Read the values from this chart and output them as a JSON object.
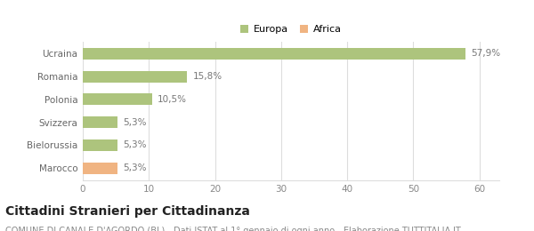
{
  "categories": [
    "Marocco",
    "Bielorussia",
    "Svizzera",
    "Polonia",
    "Romania",
    "Ucraina"
  ],
  "values": [
    5.3,
    5.3,
    5.3,
    10.5,
    15.8,
    57.9
  ],
  "labels": [
    "5,3%",
    "5,3%",
    "5,3%",
    "10,5%",
    "15,8%",
    "57,9%"
  ],
  "colors": [
    "#f0b482",
    "#adc47d",
    "#adc47d",
    "#adc47d",
    "#adc47d",
    "#adc47d"
  ],
  "legend_items": [
    {
      "label": "Europa",
      "color": "#adc47d"
    },
    {
      "label": "Africa",
      "color": "#f0b482"
    }
  ],
  "xlim": [
    0,
    63
  ],
  "xticks": [
    0,
    10,
    20,
    30,
    40,
    50,
    60
  ],
  "title": "Cittadini Stranieri per Cittadinanza",
  "subtitle": "COMUNE DI CANALE D'AGORDO (BL) - Dati ISTAT al 1° gennaio di ogni anno - Elaborazione TUTTITALIA.IT",
  "title_fontsize": 10,
  "subtitle_fontsize": 7,
  "label_fontsize": 7.5,
  "tick_fontsize": 7.5,
  "bar_height": 0.5,
  "background_color": "#ffffff",
  "grid_color": "#dddddd"
}
